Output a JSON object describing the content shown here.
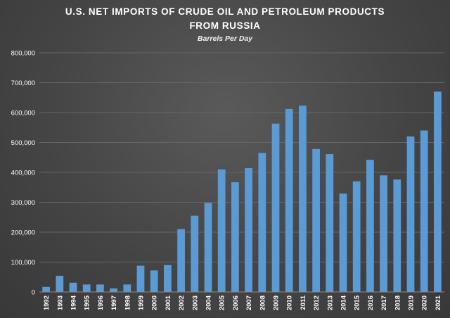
{
  "chart_data": {
    "type": "bar",
    "title": "U.S. NET IMPORTS OF CRUDE OIL AND PETROLEUM PRODUCTS",
    "title_line2": "FROM RUSSIA",
    "subtitle": "Barrels Per Day",
    "xlabel": "",
    "ylabel": "",
    "ylim": [
      0,
      800000
    ],
    "yticks": [
      0,
      100000,
      200000,
      300000,
      400000,
      500000,
      600000,
      700000,
      800000
    ],
    "ytick_labels": [
      "0",
      "100,000",
      "200,000",
      "300,000",
      "400,000",
      "500,000",
      "600,000",
      "700,000",
      "800,000"
    ],
    "grid": true,
    "bar_color": "#5b9bd5",
    "grid_color": "#666666",
    "categories": [
      "1992",
      "1993",
      "1994",
      "1995",
      "1996",
      "1997",
      "1998",
      "1999",
      "2000",
      "2001",
      "2002",
      "2003",
      "2004",
      "2005",
      "2006",
      "2007",
      "2008",
      "2009",
      "2010",
      "2011",
      "2012",
      "2013",
      "2014",
      "2015",
      "2016",
      "2017",
      "2018",
      "2019",
      "2020",
      "2021"
    ],
    "values": [
      17000,
      54000,
      31000,
      25000,
      25000,
      12000,
      25000,
      88000,
      72000,
      90000,
      210000,
      255000,
      298000,
      410000,
      367000,
      414000,
      465000,
      563000,
      612000,
      623000,
      478000,
      461000,
      329000,
      370000,
      442000,
      390000,
      376000,
      520000,
      540000,
      670000
    ]
  }
}
